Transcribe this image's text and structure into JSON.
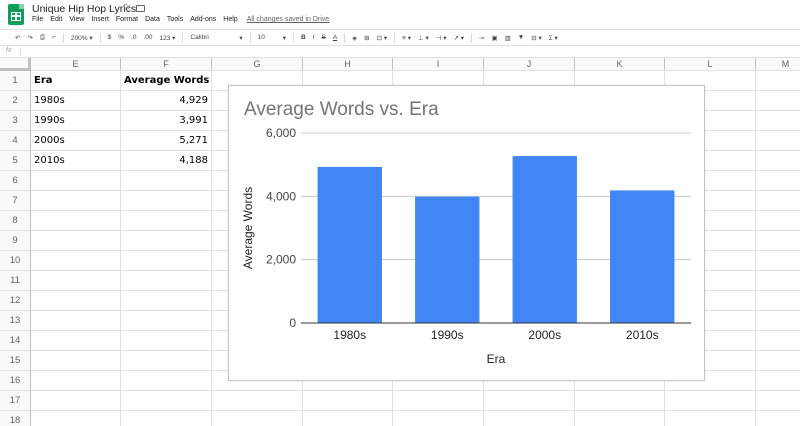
{
  "window": {
    "title": "Unique Hip Hop Lyrics",
    "menu": [
      "File",
      "Edit",
      "View",
      "Insert",
      "Format",
      "Data",
      "Tools",
      "Add-ons",
      "Help"
    ],
    "save_status": "All changes saved in Drive",
    "star_icon": "star-icon",
    "folder_icon": "folder-icon"
  },
  "toolbar": {
    "zoom": "200%",
    "currency": "$",
    "percent": "%",
    "decimal_less": ".0",
    "decimal_more": ".00",
    "more_formats": "123",
    "font": "Calibri",
    "font_size": "10",
    "bold": "B",
    "italic": "I",
    "strike": "S",
    "text_color": "A"
  },
  "formula_bar": {
    "fx": "fx",
    "value": ""
  },
  "columns": [
    "E",
    "F",
    "G",
    "H",
    "I",
    "J",
    "K",
    "L",
    "M"
  ],
  "rows": [
    "1",
    "2",
    "3",
    "4",
    "5",
    "6",
    "7",
    "8",
    "9",
    "10",
    "11",
    "12",
    "13",
    "14",
    "15",
    "16",
    "17",
    "18"
  ],
  "table": {
    "headers": [
      "Era",
      "Average Words"
    ],
    "data": [
      [
        "1980s",
        "4,929"
      ],
      [
        "1990s",
        "3,991"
      ],
      [
        "2000s",
        "5,271"
      ],
      [
        "2010s",
        "4,188"
      ]
    ]
  },
  "chart_data": {
    "type": "bar",
    "title": "Average Words vs. Era",
    "xlabel": "Era",
    "ylabel": "Average Words",
    "categories": [
      "1980s",
      "1990s",
      "2000s",
      "2010s"
    ],
    "values": [
      4929,
      3991,
      5271,
      4188
    ],
    "ylim": [
      0,
      6000
    ],
    "yticks": [
      0,
      2000,
      4000,
      6000
    ],
    "ytick_labels": [
      "0",
      "2,000",
      "4,000",
      "6,000"
    ],
    "bar_color": "#4285f4",
    "grid": true,
    "legend": "none"
  },
  "colors": {
    "brand": "#0f9d58",
    "header_bg": "#f8f9fa",
    "grid_line": "#e2e2e2"
  }
}
